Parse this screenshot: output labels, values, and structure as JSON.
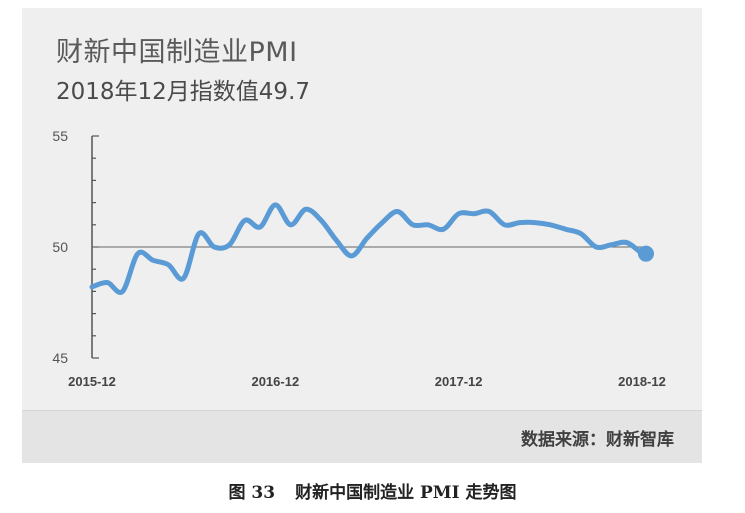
{
  "chart_data": {
    "type": "line",
    "title": "财新中国制造业PMI",
    "subtitle": "2018年12月指数值49.7",
    "ylim": [
      45,
      55
    ],
    "yticks": [
      55,
      50,
      45
    ],
    "reference_line": 50,
    "xticks": [
      "2015-12",
      "2016-12",
      "2017-12",
      "2018-12"
    ],
    "grid": false,
    "line_color": "#5b9bd5",
    "x": [
      "2015-12",
      "2016-01",
      "2016-02",
      "2016-03",
      "2016-04",
      "2016-05",
      "2016-06",
      "2016-07",
      "2016-08",
      "2016-09",
      "2016-10",
      "2016-11",
      "2016-12",
      "2017-01",
      "2017-02",
      "2017-03",
      "2017-04",
      "2017-05",
      "2017-06",
      "2017-07",
      "2017-08",
      "2017-09",
      "2017-10",
      "2017-11",
      "2017-12",
      "2018-01",
      "2018-02",
      "2018-03",
      "2018-04",
      "2018-05",
      "2018-06",
      "2018-07",
      "2018-08",
      "2018-09",
      "2018-10",
      "2018-11",
      "2018-12"
    ],
    "values": [
      48.2,
      48.4,
      48.0,
      49.7,
      49.4,
      49.2,
      48.6,
      50.6,
      50.0,
      50.1,
      51.2,
      50.9,
      51.9,
      51.0,
      51.7,
      51.2,
      50.3,
      49.6,
      50.4,
      51.1,
      51.6,
      51.0,
      51.0,
      50.8,
      51.5,
      51.5,
      51.6,
      51.0,
      51.1,
      51.1,
      51.0,
      50.8,
      50.6,
      50.0,
      50.1,
      50.2,
      49.7
    ]
  },
  "source": "数据来源：财新智库",
  "caption": {
    "number": "图 33",
    "text": "财新中国制造业 PMI 走势图"
  }
}
